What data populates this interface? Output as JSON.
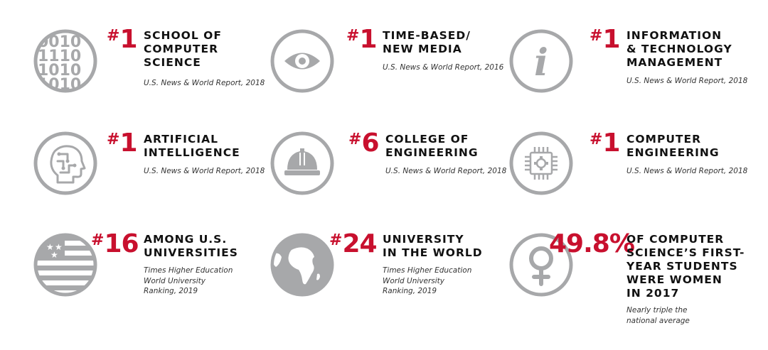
{
  "colors": {
    "accent": "#c8102e",
    "icon": "#a7a8aa",
    "text": "#111111"
  },
  "items": [
    {
      "icon": "binary-icon",
      "rank_prefix": "#",
      "rank": "1",
      "title": [
        "SCHOOL OF",
        "COMPUTER",
        "SCIENCE"
      ],
      "source": [
        "U.S. News & World Report, 2018"
      ],
      "binary": [
        "0010",
        "1110",
        "1010",
        "1010"
      ]
    },
    {
      "icon": "eye-icon",
      "rank_prefix": "#",
      "rank": "1",
      "title": [
        "TIME-BASED/",
        "NEW MEDIA"
      ],
      "source": [
        "U.S. News & World Report, 2016"
      ]
    },
    {
      "icon": "info-icon",
      "rank_prefix": "#",
      "rank": "1",
      "title": [
        "INFORMATION",
        "& TECHNOLOGY",
        "MANAGEMENT"
      ],
      "source": [
        "U.S. News & World Report, 2018"
      ],
      "glyph": "i"
    },
    {
      "icon": "ai-head-icon",
      "rank_prefix": "#",
      "rank": "1",
      "title": [
        "ARTIFICIAL",
        "INTELLIGENCE"
      ],
      "source": [
        "U.S. News & World Report, 2018"
      ]
    },
    {
      "icon": "hard-hat-icon",
      "rank_prefix": "#",
      "rank": "6",
      "title": [
        "COLLEGE OF",
        "ENGINEERING"
      ],
      "source": [
        "U.S. News & World Report, 2018"
      ]
    },
    {
      "icon": "chip-icon",
      "rank_prefix": "#",
      "rank": "1",
      "title": [
        "COMPUTER",
        "ENGINEERING"
      ],
      "source": [
        "U.S. News & World Report, 2018"
      ]
    },
    {
      "icon": "us-flag-icon",
      "rank_prefix": "#",
      "rank": "16",
      "title": [
        "AMONG U.S.",
        "UNIVERSITIES"
      ],
      "source": [
        "Times Higher Education",
        "World University",
        "Ranking, 2019"
      ]
    },
    {
      "icon": "globe-icon",
      "rank_prefix": "#",
      "rank": "24",
      "title": [
        "UNIVERSITY",
        "IN THE WORLD"
      ],
      "source": [
        "Times Higher Education",
        "World University",
        "Ranking, 2019"
      ]
    },
    {
      "icon": "female-symbol-icon",
      "rank_prefix": "",
      "rank": "49.8%",
      "title": [
        "OF COMPUTER",
        "SCIENCE’S FIRST-",
        "YEAR STUDENTS",
        "WERE WOMEN",
        "IN 2017"
      ],
      "source": [
        "Nearly triple the",
        "national average"
      ]
    }
  ]
}
